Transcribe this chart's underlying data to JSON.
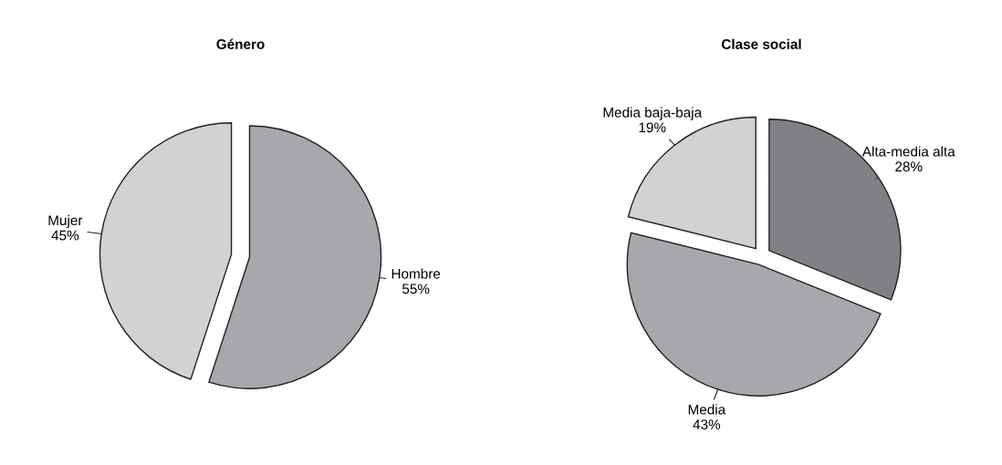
{
  "chart_data": [
    {
      "type": "pie",
      "title": "Género",
      "categories": [
        "Hombre",
        "Mujer"
      ],
      "values": [
        55,
        45
      ],
      "value_labels": [
        "55%",
        "45%"
      ],
      "colors": [
        "#a7a8ac",
        "#d1d2d4"
      ]
    },
    {
      "type": "pie",
      "title": "Clase social",
      "categories": [
        "Alta-media alta",
        "Media",
        "Media baja-baja"
      ],
      "values": [
        28,
        43,
        19
      ],
      "value_labels": [
        "28%",
        "43%",
        "19%"
      ],
      "colors": [
        "#808184",
        "#a7a8ac",
        "#d1d2d4"
      ]
    }
  ]
}
